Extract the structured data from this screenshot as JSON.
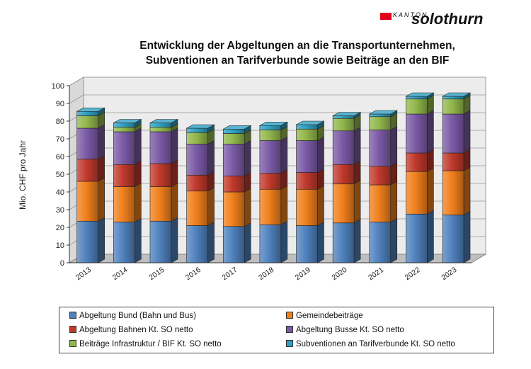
{
  "logo": {
    "small": "KANTON",
    "big": "solothurn",
    "mark_color": "#e3001b"
  },
  "chart_data": {
    "type": "bar",
    "stacked": true,
    "title_lines": [
      "Entwicklung der Abgeltungen an die Transportunternehmen,",
      "Subventionen an Tarifverbunde sowie Beiträge an den BIF"
    ],
    "ylabel": "Mio. CHF pro Jahr",
    "xlabel": "",
    "ylim": [
      0,
      100
    ],
    "yticks": [
      0,
      10,
      20,
      30,
      40,
      50,
      60,
      70,
      80,
      90,
      100
    ],
    "grid": true,
    "legend_position": "bottom",
    "categories": [
      "2013",
      "2014",
      "2015",
      "2016",
      "2017",
      "2018",
      "2019",
      "2020",
      "2021",
      "2022",
      "2023"
    ],
    "series": [
      {
        "name": "Abgeltung Bund (Bahn und Bus)",
        "color": "#4f81bd",
        "values": [
          23.5,
          23,
          23.5,
          21,
          20.5,
          21.5,
          21,
          22.5,
          23,
          27.5,
          27
        ]
      },
      {
        "name": "Gemeindebeiträge",
        "color": "#f07f1c",
        "values": [
          22.5,
          20,
          19.5,
          19.5,
          19.5,
          20,
          20.5,
          22,
          21,
          24,
          25
        ]
      },
      {
        "name": "Abgeltung Bahnen Kt. SO netto",
        "color": "#c0392b",
        "values": [
          12.5,
          12.5,
          13,
          9,
          9,
          9,
          9.5,
          11,
          10.5,
          10.5,
          10
        ]
      },
      {
        "name": "Abgeltung Busse Kt. SO netto",
        "color": "#7b5aa6",
        "values": [
          17.5,
          18.5,
          18,
          17.5,
          18,
          18.5,
          18,
          19,
          20.5,
          22,
          22
        ]
      },
      {
        "name": "Beiträge Infrastruktur / BIF Kt. SO netto",
        "color": "#92b74b",
        "values": [
          7,
          2.5,
          2.5,
          6.5,
          6,
          6,
          6.5,
          7,
          7.5,
          8.5,
          8.5
        ]
      },
      {
        "name": "Subventionen an Tarifverbunde Kt. SO netto",
        "color": "#2fa0c2",
        "values": [
          2.5,
          2.5,
          2.5,
          2.5,
          2.5,
          2.5,
          2.5,
          1.5,
          1.5,
          1.5,
          1.5
        ]
      }
    ]
  }
}
